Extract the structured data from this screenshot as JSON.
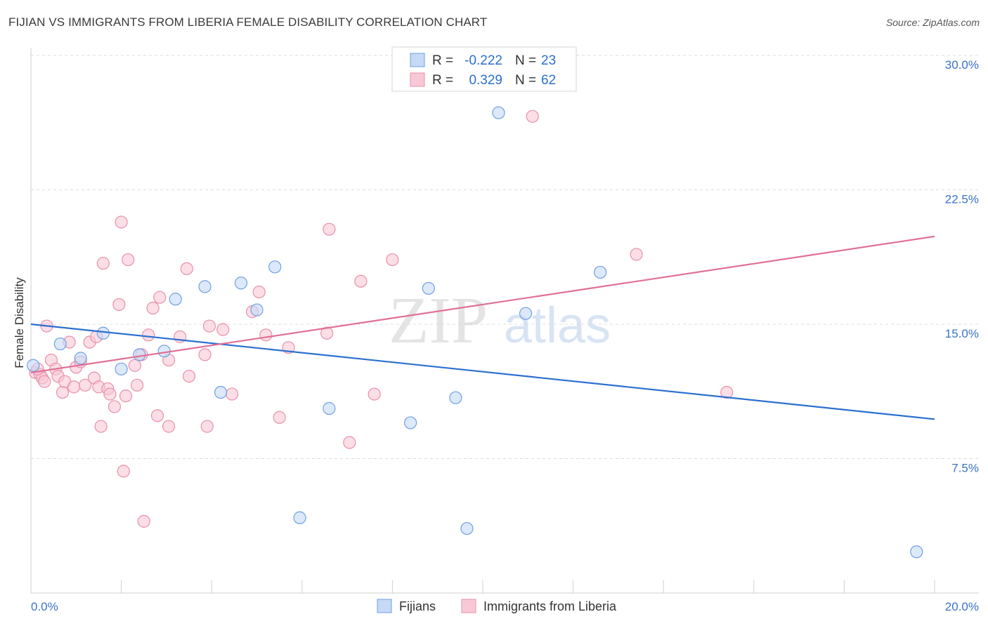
{
  "chart_data": {
    "type": "scatter",
    "title": "FIJIAN VS IMMIGRANTS FROM LIBERIA FEMALE DISABILITY CORRELATION CHART",
    "source": "Source: ZipAtlas.com",
    "xlabel": "",
    "ylabel": "Female Disability",
    "xlim": [
      0,
      20
    ],
    "ylim": [
      0,
      30
    ],
    "x_tick_labels": [
      "0.0%",
      "20.0%"
    ],
    "y_ticks": [
      7.5,
      15.0,
      22.5,
      30.0
    ],
    "y_tick_labels": [
      "7.5%",
      "15.0%",
      "22.5%",
      "30.0%"
    ],
    "watermark": {
      "part1": "ZIP",
      "part2": "atlas"
    },
    "legend_stats": [
      {
        "r_label": "R =",
        "r_value": "-0.222",
        "n_label": "N =",
        "n_value": "23"
      },
      {
        "r_label": "R =",
        "r_value": "0.329",
        "n_label": "N =",
        "n_value": "62"
      }
    ],
    "series": [
      {
        "name": "Fijians",
        "color": "#6fa0e0",
        "fill": "#c5daf6",
        "trend_color": "#2b6fd0",
        "trend": {
          "x": [
            0,
            20
          ],
          "y": [
            15.0,
            9.7
          ]
        },
        "points": [
          [
            0.05,
            12.7
          ],
          [
            0.65,
            13.9
          ],
          [
            1.1,
            13.1
          ],
          [
            1.6,
            14.5
          ],
          [
            2.0,
            12.5
          ],
          [
            2.4,
            13.3
          ],
          [
            2.95,
            13.5
          ],
          [
            3.2,
            16.4
          ],
          [
            3.85,
            17.1
          ],
          [
            4.2,
            11.2
          ],
          [
            4.65,
            17.3
          ],
          [
            5.0,
            15.8
          ],
          [
            5.4,
            18.2
          ],
          [
            5.95,
            4.2
          ],
          [
            6.6,
            10.3
          ],
          [
            8.4,
            9.5
          ],
          [
            8.8,
            17.0
          ],
          [
            9.4,
            10.9
          ],
          [
            9.65,
            3.6
          ],
          [
            10.35,
            26.8
          ],
          [
            10.95,
            15.6
          ],
          [
            12.6,
            17.9
          ],
          [
            19.6,
            2.3
          ]
        ]
      },
      {
        "name": "Immigrants from Liberia",
        "color": "#e890aa",
        "fill": "#f8c8d6",
        "trend_color": "#e07095",
        "trend": {
          "x": [
            0,
            20
          ],
          "y": [
            12.3,
            19.9
          ]
        },
        "points": [
          [
            0.1,
            12.3
          ],
          [
            0.2,
            12.2
          ],
          [
            0.25,
            12.0
          ],
          [
            0.3,
            11.8
          ],
          [
            0.35,
            14.9
          ],
          [
            0.45,
            13.0
          ],
          [
            0.55,
            12.5
          ],
          [
            0.6,
            12.1
          ],
          [
            0.7,
            11.2
          ],
          [
            0.75,
            11.8
          ],
          [
            0.85,
            14.0
          ],
          [
            0.95,
            11.5
          ],
          [
            1.0,
            12.6
          ],
          [
            1.1,
            12.9
          ],
          [
            1.2,
            11.6
          ],
          [
            1.3,
            14.0
          ],
          [
            1.4,
            12.0
          ],
          [
            1.45,
            14.3
          ],
          [
            1.5,
            11.5
          ],
          [
            1.55,
            9.3
          ],
          [
            1.6,
            18.4
          ],
          [
            1.7,
            11.4
          ],
          [
            1.75,
            11.1
          ],
          [
            1.85,
            10.4
          ],
          [
            1.95,
            16.1
          ],
          [
            2.0,
            20.7
          ],
          [
            2.05,
            6.8
          ],
          [
            2.1,
            11.0
          ],
          [
            2.15,
            18.6
          ],
          [
            2.3,
            12.7
          ],
          [
            2.35,
            11.6
          ],
          [
            2.45,
            13.3
          ],
          [
            2.5,
            4.0
          ],
          [
            2.6,
            14.4
          ],
          [
            2.7,
            15.9
          ],
          [
            2.8,
            9.9
          ],
          [
            2.85,
            16.5
          ],
          [
            3.05,
            13.0
          ],
          [
            3.05,
            9.3
          ],
          [
            3.3,
            14.3
          ],
          [
            3.45,
            18.1
          ],
          [
            3.5,
            12.1
          ],
          [
            3.85,
            13.3
          ],
          [
            3.9,
            9.3
          ],
          [
            3.95,
            14.9
          ],
          [
            4.25,
            14.7
          ],
          [
            4.45,
            11.1
          ],
          [
            4.9,
            15.7
          ],
          [
            5.05,
            16.8
          ],
          [
            5.2,
            14.4
          ],
          [
            5.5,
            9.8
          ],
          [
            5.7,
            13.7
          ],
          [
            6.55,
            14.5
          ],
          [
            6.6,
            20.3
          ],
          [
            7.05,
            8.4
          ],
          [
            7.3,
            17.4
          ],
          [
            7.6,
            11.1
          ],
          [
            8.0,
            18.6
          ],
          [
            11.1,
            26.6
          ],
          [
            13.4,
            18.9
          ],
          [
            15.4,
            11.2
          ],
          [
            0.15,
            12.5
          ]
        ]
      }
    ]
  }
}
